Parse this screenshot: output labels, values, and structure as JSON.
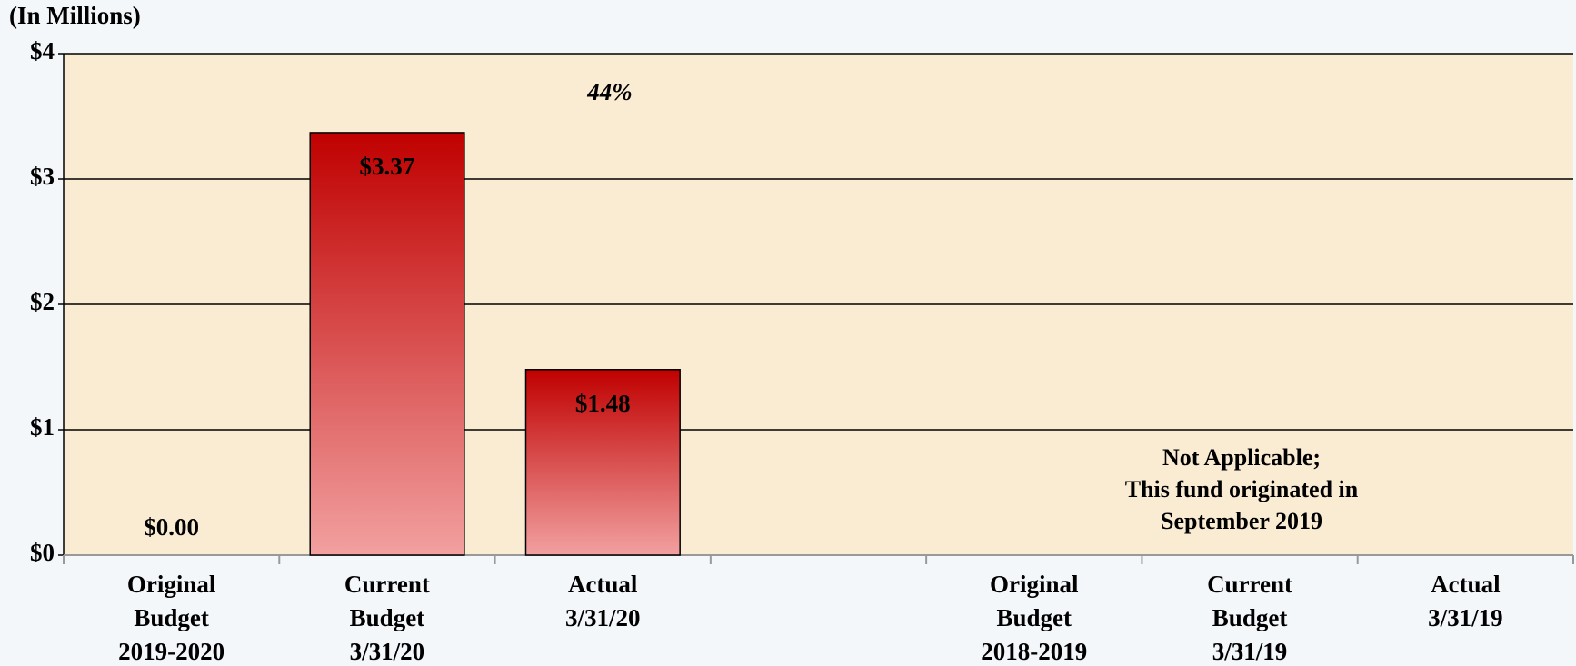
{
  "chart_data": {
    "type": "bar",
    "ylabel": "(In Millions)",
    "categories": [
      "Original\nBudget\n2019-2020",
      "Current\nBudget\n3/31/20",
      "Actual\n3/31/20",
      null,
      "Original\nBudget\n2018-2019",
      "Current\nBudget\n3/31/19",
      "Actual\n3/31/19"
    ],
    "values": [
      0,
      3.37,
      1.48,
      null,
      null,
      null,
      null
    ],
    "value_labels": [
      "$0.00",
      "$3.37",
      "$1.48",
      null,
      null,
      null,
      null
    ],
    "color": "#c00000",
    "ylim": [
      0,
      4
    ],
    "yticks": [
      {
        "value": 0,
        "label": "$0"
      },
      {
        "value": 1,
        "label": "$1"
      },
      {
        "value": 2,
        "label": "$2"
      },
      {
        "value": 3,
        "label": "$3"
      },
      {
        "value": 4,
        "label": "$4"
      }
    ],
    "grid": true,
    "annotations": [
      "44%",
      "Not Applicable;\nThis fund originated in\nSeptember 2019"
    ]
  }
}
